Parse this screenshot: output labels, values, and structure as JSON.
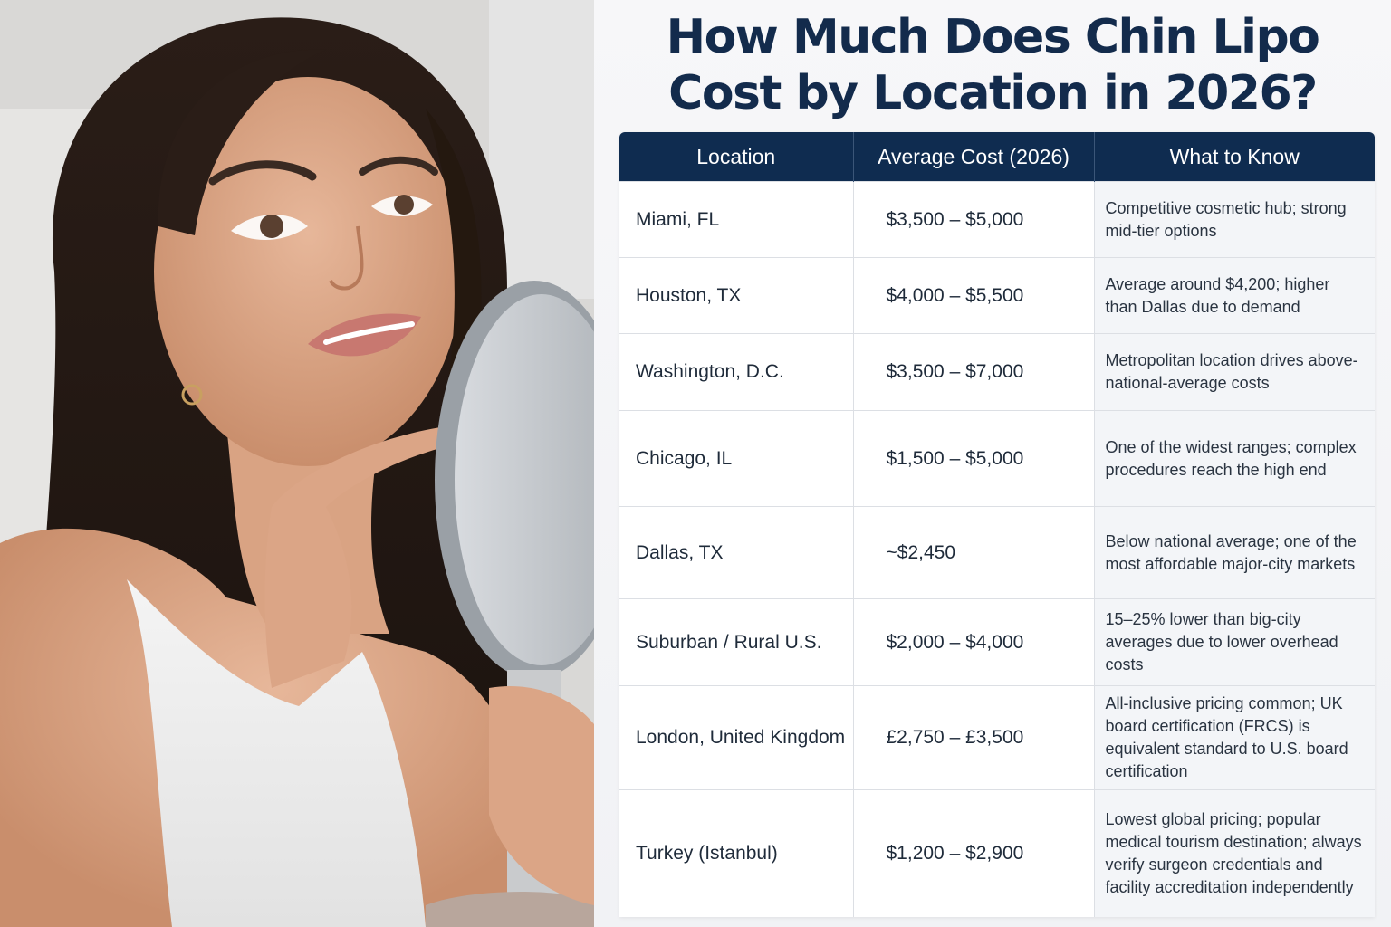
{
  "title_lines": [
    "How Much Does Chin Lipo",
    "Cost by Location in 2026?"
  ],
  "table": {
    "headers": [
      "Location",
      "Average Cost (2026)",
      "What to Know"
    ],
    "rows": [
      {
        "location": "Miami, FL",
        "cost": "$3,500 – $5,000",
        "note": "Competitive cosmetic hub; strong mid-tier options"
      },
      {
        "location": "Houston, TX",
        "cost": "$4,000 – $5,500",
        "note": "Average around $4,200; higher than Dallas due to demand"
      },
      {
        "location": "Washington, D.C.",
        "cost": "$3,500 – $7,000",
        "note": "Metropolitan location drives above-national-average costs"
      },
      {
        "location": "Chicago, IL",
        "cost": "$1,500 – $5,000",
        "note": "One of the widest ranges; complex procedures reach the high end"
      },
      {
        "location": "Dallas, TX",
        "cost": "~$2,450",
        "note": "Below national average; one of the most affordable major-city markets"
      },
      {
        "location": "Suburban / Rural U.S.",
        "cost": "$2,000 – $4,000",
        "note": "15–25% lower than big-city averages due to lower overhead costs"
      },
      {
        "location": "London, United Kingdom",
        "cost": "£2,750 – £3,500",
        "note": "All-inclusive pricing common; UK board certification (FRCS) is equivalent standard to U.S. board certification"
      },
      {
        "location": "Turkey (Istanbul)",
        "cost": "$1,200 – $2,900",
        "note": "Lowest global pricing; popular medical tourism destination; always verify surgeon credentials and facility accreditation independently"
      }
    ]
  },
  "colors": {
    "title": "#132b4c",
    "header_bg": "#0f2c50",
    "note_bg": "#f3f5f8"
  }
}
